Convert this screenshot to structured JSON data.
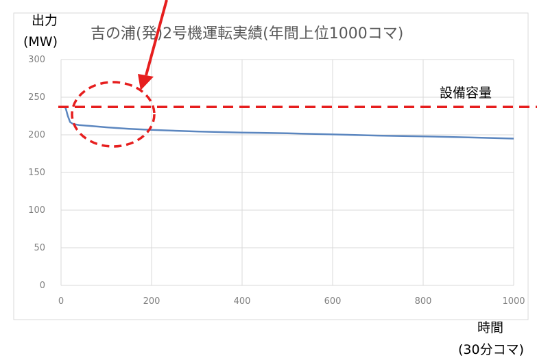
{
  "chart_data": {
    "type": "line",
    "title": "吉の浦(発)2号機運転実績(年間上位1000コマ)",
    "ylabel_line1": "出力",
    "ylabel_line2": "(MW)",
    "xlabel_line1": "時間",
    "xlabel_line2": "(30分コマ)",
    "xlim": [
      0,
      1000
    ],
    "ylim": [
      0,
      300
    ],
    "x_ticks": [
      0,
      200,
      400,
      600,
      800,
      1000
    ],
    "y_ticks": [
      0,
      50,
      100,
      150,
      200,
      250,
      300
    ],
    "grid": true,
    "series": [
      {
        "x": [
          0,
          5,
          10,
          15,
          20,
          25,
          30,
          40,
          50,
          60,
          80,
          100,
          150,
          200,
          300,
          400,
          500,
          600,
          700,
          800,
          900,
          1000
        ],
        "y": [
          237,
          237,
          236,
          225,
          217,
          215,
          214,
          213,
          212.5,
          212,
          211,
          210,
          208,
          206.5,
          204.5,
          203,
          202,
          200.5,
          199,
          198,
          196.5,
          195
        ]
      }
    ],
    "annotations": {
      "capacity_label": "設備容量",
      "capacity_value": 237,
      "highlight_region_x": [
        0,
        200
      ],
      "highlight_region_y": [
        185,
        255
      ]
    },
    "colors": {
      "series": "#5b86bf",
      "annotation": "#e61e1e",
      "grid": "#d9d9d9"
    }
  }
}
